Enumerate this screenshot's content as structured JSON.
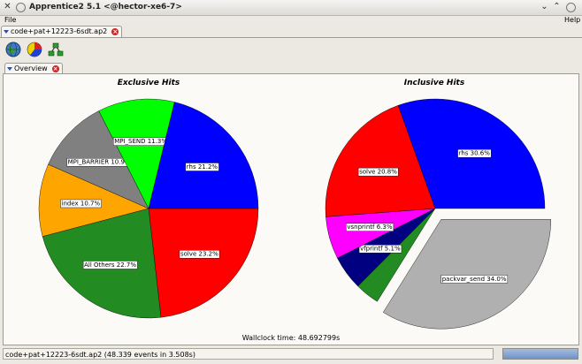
{
  "window": {
    "title": "Apprentice2 5.1 <@hector-xe6-7>"
  },
  "menu": {
    "file": "File",
    "help": "Help"
  },
  "file_tab": {
    "label": "code+pat+12223-6sdt.ap2"
  },
  "toolbar": {
    "icons": [
      "globe-icon",
      "pie-chart-icon",
      "call-tree-icon"
    ]
  },
  "overview_tab": {
    "label": "Overview"
  },
  "exclusive": {
    "title": "Exclusive Hits",
    "slices": [
      {
        "label": "solve  23.2%",
        "value": 23.2,
        "color": "#ff0000"
      },
      {
        "label": "All Others 22.7%",
        "value": 22.7,
        "color": "#228b22"
      },
      {
        "label": "index  10.7%",
        "value": 10.7,
        "color": "#ffa500"
      },
      {
        "label": "MPI_BARRIER 10.9%",
        "value": 10.9,
        "color": "#808080"
      },
      {
        "label": "MPI_SEND 11.3%",
        "value": 11.3,
        "color": "#00ff00"
      },
      {
        "label": "rhs  21.2%",
        "value": 21.2,
        "color": "#0000ff"
      }
    ]
  },
  "inclusive": {
    "title": "Inclusive Hits",
    "slices": [
      {
        "label": "packvar_send  34.0%",
        "value": 34.0,
        "color": "#b0b0b0",
        "exploded": true
      },
      {
        "label": "",
        "value": 3.6,
        "color": "#228b22"
      },
      {
        "label": "vfprintf 5.1%",
        "value": 5.1,
        "color": "#000080"
      },
      {
        "label": "vsnprintf 6.3%",
        "value": 6.3,
        "color": "#ff00ff"
      },
      {
        "label": "solve  20.8%",
        "value": 20.8,
        "color": "#ff0000"
      },
      {
        "label": "rhs  30.6%",
        "value": 30.6,
        "color": "#0000ff"
      }
    ]
  },
  "wallclock": "Wallclock time: 48.692799s",
  "status": {
    "text": "code+pat+12223-6sdt.ap2 (48.339 events in 3.508s)",
    "progress": 1.0
  }
}
